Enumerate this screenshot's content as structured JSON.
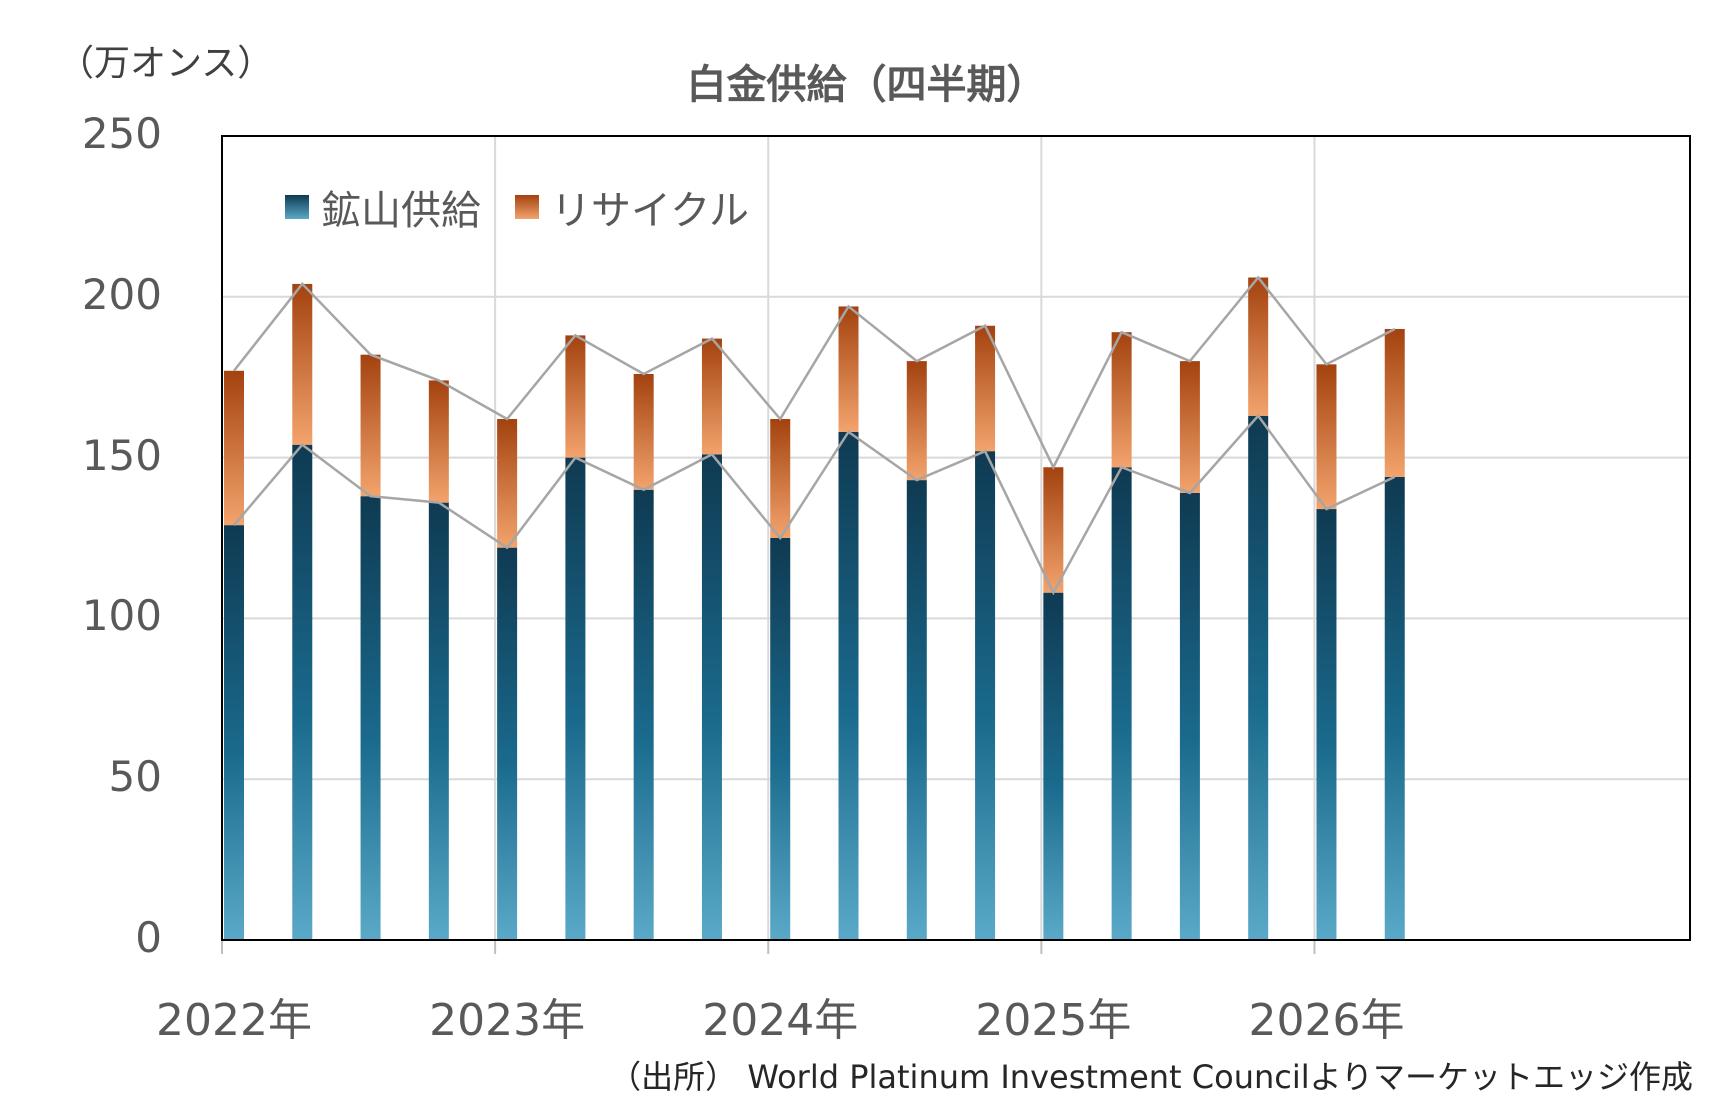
{
  "chart_data": {
    "type": "bar",
    "stacked": true,
    "title": "白金供給（四半期）",
    "unit_label": "（万オンス）",
    "source": "（出所） World Platinum Investment Councilよりマーケットエッジ作成",
    "ylim": [
      0,
      250
    ],
    "yticks": [
      "0",
      "50",
      "100",
      "150",
      "200",
      "250"
    ],
    "year_labels": [
      "2022年",
      "2023年",
      "2024年",
      "2025年",
      "2026年"
    ],
    "quarters_per_year": 4,
    "grid": true,
    "legend_position": "top-left",
    "series": [
      {
        "name": "鉱山供給",
        "color_top": "#0f3a52",
        "color_bottom": "#5aa9c8",
        "values": [
          129,
          154,
          138,
          136,
          122,
          150,
          140,
          151,
          125,
          158,
          143,
          152,
          108,
          147,
          139,
          163,
          134,
          144
        ]
      },
      {
        "name": "リサイクル",
        "color_top": "#a3420f",
        "color_bottom": "#f3a36c",
        "values": [
          48,
          50,
          44,
          38,
          40,
          38,
          36,
          36,
          37,
          39,
          37,
          39,
          39,
          42,
          41,
          43,
          45,
          46
        ]
      }
    ]
  }
}
